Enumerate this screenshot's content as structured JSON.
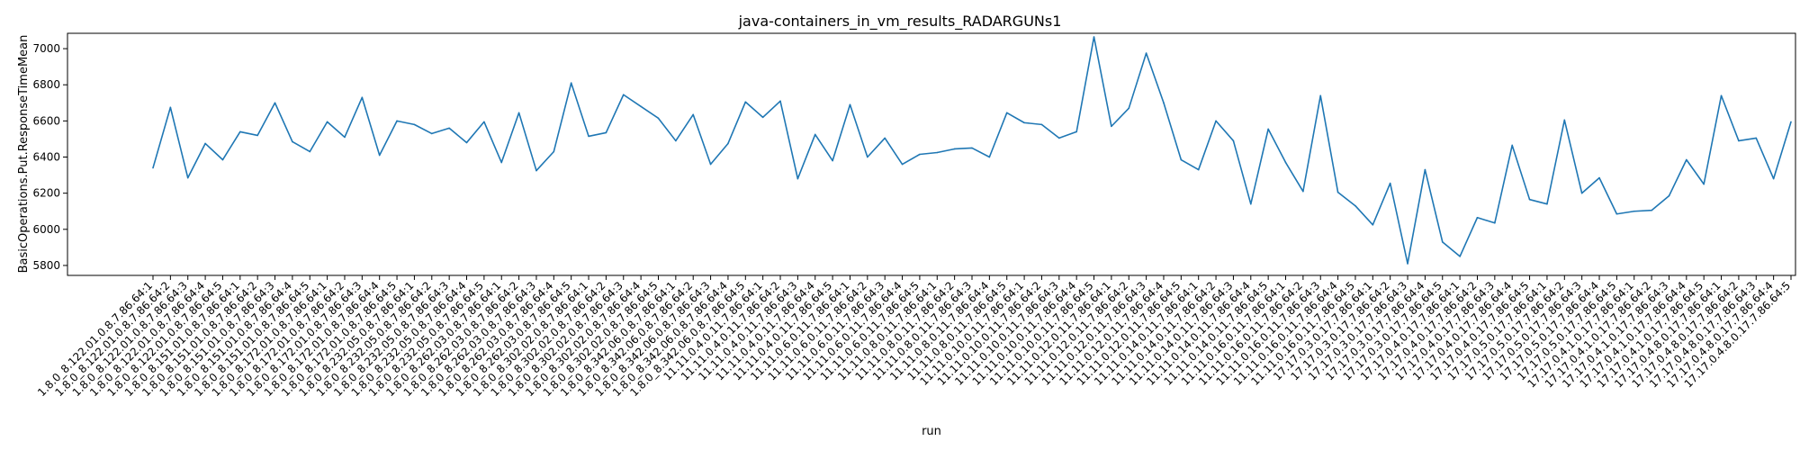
{
  "chart_data": {
    "type": "line",
    "title": "java-containers_in_vm_results_RADARGUNs1",
    "xlabel": "run",
    "ylabel": "BasicOperations.Put.ResponseTimeMean",
    "ylim": [
      5745,
      7085
    ],
    "yticks": [
      5800,
      6000,
      6200,
      6400,
      6600,
      6800,
      7000
    ],
    "grid": false,
    "legend": "none",
    "line_color": "#1f77b4",
    "categories": [
      "1.8.0_8.122.01.0.8.7.86.64:1",
      "1.8.0_8.122.01.0.8.7.86.64:2",
      "1.8.0_8.122.01.0.8.7.86.64:3",
      "1.8.0_8.122.01.0.8.7.86.64:4",
      "1.8.0_8.122.01.0.8.7.86.64:5",
      "1.8.0_8.151.01.0.8.7.86.64:1",
      "1.8.0_8.151.01.0.8.7.86.64:2",
      "1.8.0_8.151.01.0.8.7.86.64:3",
      "1.8.0_8.151.01.0.8.7.86.64:4",
      "1.8.0_8.151.01.0.8.7.86.64:5",
      "1.8.0_8.172.01.0.8.7.86.64:1",
      "1.8.0_8.172.01.0.8.7.86.64:2",
      "1.8.0_8.172.01.0.8.7.86.64:3",
      "1.8.0_8.172.01.0.8.7.86.64:4",
      "1.8.0_8.172.01.0.8.7.86.64:5",
      "1.8.0_8.232.05.0.8.7.86.64:1",
      "1.8.0_8.232.05.0.8.7.86.64:2",
      "1.8.0_8.232.05.0.8.7.86.64:3",
      "1.8.0_8.232.05.0.8.7.86.64:4",
      "1.8.0_8.232.05.0.8.7.86.64:5",
      "1.8.0_8.262.03.0.8.7.86.64:1",
      "1.8.0_8.262.03.0.8.7.86.64:2",
      "1.8.0_8.262.03.0.8.7.86.64:3",
      "1.8.0_8.262.03.0.8.7.86.64:4",
      "1.8.0_8.262.03.0.8.7.86.64:5",
      "1.8.0_8.302.02.0.8.7.86.64:1",
      "1.8.0_8.302.02.0.8.7.86.64:2",
      "1.8.0_8.302.02.0.8.7.86.64:3",
      "1.8.0_8.302.02.0.8.7.86.64:4",
      "1.8.0_8.302.02.0.8.7.86.64:5",
      "1.8.0_8.342.06.0.8.7.86.64:1",
      "1.8.0_8.342.06.0.8.7.86.64:2",
      "1.8.0_8.342.06.0.8.7.86.64:3",
      "1.8.0_8.342.06.0.8.7.86.64:4",
      "1.8.0_8.342.06.0.8.7.86.64:5",
      "11.11.0.4.0.11.7.86.64:1",
      "11.11.0.4.0.11.7.86.64:2",
      "11.11.0.4.0.11.7.86.64:3",
      "11.11.0.4.0.11.7.86.64:4",
      "11.11.0.4.0.11.7.86.64:5",
      "11.11.0.6.0.11.7.86.64:1",
      "11.11.0.6.0.11.7.86.64:2",
      "11.11.0.6.0.11.7.86.64:3",
      "11.11.0.6.0.11.7.86.64:4",
      "11.11.0.6.0.11.7.86.64:5",
      "11.11.0.8.0.11.7.86.64:1",
      "11.11.0.8.0.11.7.86.64:2",
      "11.11.0.8.0.11.7.86.64:3",
      "11.11.0.8.0.11.7.86.64:4",
      "11.11.0.8.0.11.7.86.64:5",
      "11.11.0.10.0.11.7.86.64:1",
      "11.11.0.10.0.11.7.86.64:2",
      "11.11.0.10.0.11.7.86.64:3",
      "11.11.0.10.0.11.7.86.64:4",
      "11.11.0.10.0.11.7.86.64:5",
      "11.11.0.12.0.11.7.86.64:1",
      "11.11.0.12.0.11.7.86.64:2",
      "11.11.0.12.0.11.7.86.64:3",
      "11.11.0.12.0.11.7.86.64:4",
      "11.11.0.12.0.11.7.86.64:5",
      "11.11.0.14.0.11.7.86.64:1",
      "11.11.0.14.0.11.7.86.64:2",
      "11.11.0.14.0.11.7.86.64:3",
      "11.11.0.14.0.11.7.86.64:4",
      "11.11.0.14.0.11.7.86.64:5",
      "11.11.0.16.0.11.7.86.64:1",
      "11.11.0.16.0.11.7.86.64:2",
      "11.11.0.16.0.11.7.86.64:3",
      "11.11.0.16.0.11.7.86.64:4",
      "11.11.0.16.0.11.7.86.64:5",
      "17.17.0.3.0.17.7.86.64:1",
      "17.17.0.3.0.17.7.86.64:2",
      "17.17.0.3.0.17.7.86.64:3",
      "17.17.0.3.0.17.7.86.64:4",
      "17.17.0.3.0.17.7.86.64:5",
      "17.17.0.4.0.17.7.86.64:1",
      "17.17.0.4.0.17.7.86.64:2",
      "17.17.0.4.0.17.7.86.64:3",
      "17.17.0.4.0.17.7.86.64:4",
      "17.17.0.4.0.17.7.86.64:5",
      "17.17.0.5.0.17.7.86.64:1",
      "17.17.0.5.0.17.7.86.64:2",
      "17.17.0.5.0.17.7.86.64:3",
      "17.17.0.5.0.17.7.86.64:4",
      "17.17.0.5.0.17.7.86.64:5",
      "17.17.0.4.1.0.17.7.86.64:1",
      "17.17.0.4.1.0.17.7.86.64:2",
      "17.17.0.4.1.0.17.7.86.64:3",
      "17.17.0.4.1.0.17.7.86.64:4",
      "17.17.0.4.1.0.17.7.86.64:5",
      "17.17.0.4.8.0.17.7.86.64:1",
      "17.17.0.4.8.0.17.7.86.64:2",
      "17.17.0.4.8.0.17.7.86.64:3",
      "17.17.0.4.8.0.17.7.86.64:4",
      "17.17.0.4.8.0.17.7.86.64:5"
    ],
    "values": [
      6340,
      6675,
      6285,
      6475,
      6385,
      6540,
      6520,
      6700,
      6485,
      6430,
      6595,
      6510,
      6730,
      6410,
      6600,
      6580,
      6530,
      6560,
      6480,
      6595,
      6370,
      6645,
      6325,
      6430,
      6810,
      6515,
      6535,
      6745,
      6680,
      6615,
      6490,
      6635,
      6360,
      6475,
      6705,
      6620,
      6710,
      6280,
      6525,
      6380,
      6690,
      6400,
      6505,
      6360,
      6415,
      6425,
      6445,
      6450,
      6400,
      6645,
      6590,
      6580,
      6505,
      6540,
      7065,
      6570,
      6670,
      6975,
      6700,
      6385,
      6330,
      6600,
      6490,
      6140,
      6555,
      6370,
      6210,
      6740,
      6205,
      6130,
      6025,
      6255,
      5810,
      6330,
      5930,
      5850,
      6065,
      6035,
      6465,
      6165,
      6140,
      6605,
      6200,
      6285,
      6085,
      6100,
      6105,
      6185,
      6385,
      6250,
      6740,
      6490,
      6505,
      6280,
      6595
    ]
  }
}
